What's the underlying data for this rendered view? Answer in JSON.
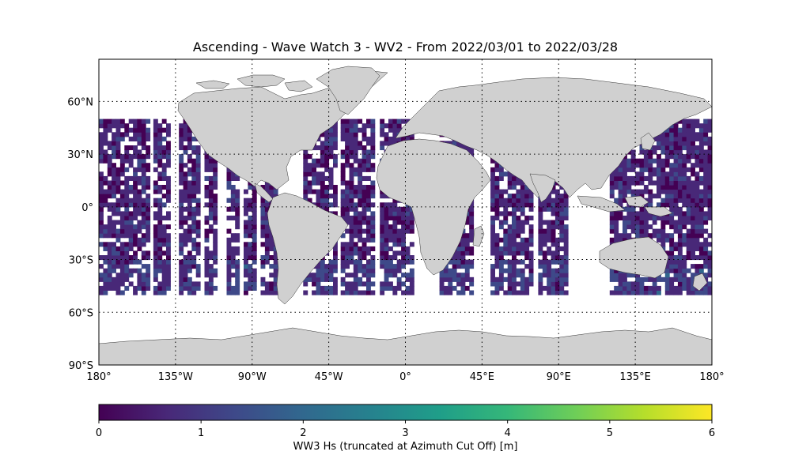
{
  "title": "Ascending - Wave Watch 3 - WV2 - From 2022/03/01 to 2022/03/28",
  "map": {
    "projection": "PlateCarree",
    "lon_range": [
      -180,
      180
    ],
    "lat_range": [
      -90,
      90
    ],
    "land_color": "#d0d0d0",
    "ocean_color": "#ffffff",
    "gridlines": "dotted",
    "lat_ticks": [
      {
        "value": 60,
        "label": "60°N"
      },
      {
        "value": 30,
        "label": "30°N"
      },
      {
        "value": 0,
        "label": "0°"
      },
      {
        "value": -30,
        "label": "30°S"
      },
      {
        "value": -60,
        "label": "60°S"
      },
      {
        "value": -90,
        "label": "90°S"
      }
    ],
    "lon_ticks": [
      {
        "value": -180,
        "label": "180°"
      },
      {
        "value": -135,
        "label": "135°W"
      },
      {
        "value": -90,
        "label": "90°W"
      },
      {
        "value": -45,
        "label": "45°W"
      },
      {
        "value": 0,
        "label": "0°"
      },
      {
        "value": 45,
        "label": "45°E"
      },
      {
        "value": 90,
        "label": "90°E"
      },
      {
        "value": 135,
        "label": "135°E"
      },
      {
        "value": 180,
        "label": "180°"
      }
    ]
  },
  "data_coverage": {
    "lat_range": [
      -50,
      50
    ],
    "variable": "WW3 Hs (truncated at Azimuth Cut Off)",
    "typical_range_m": [
      0.2,
      2.5
    ]
  },
  "colorbar": {
    "colormap": "viridis",
    "min": 0,
    "max": 6,
    "ticks": [
      0,
      1,
      2,
      3,
      4,
      5,
      6
    ],
    "label": "WW3 Hs (truncated at Azimuth Cut Off) [m]"
  },
  "colors": {
    "viridis": [
      "#440154",
      "#482878",
      "#3e4989",
      "#31688e",
      "#26828e",
      "#1f9e89",
      "#35b779",
      "#6ece58",
      "#b5de2b",
      "#fde725"
    ]
  }
}
